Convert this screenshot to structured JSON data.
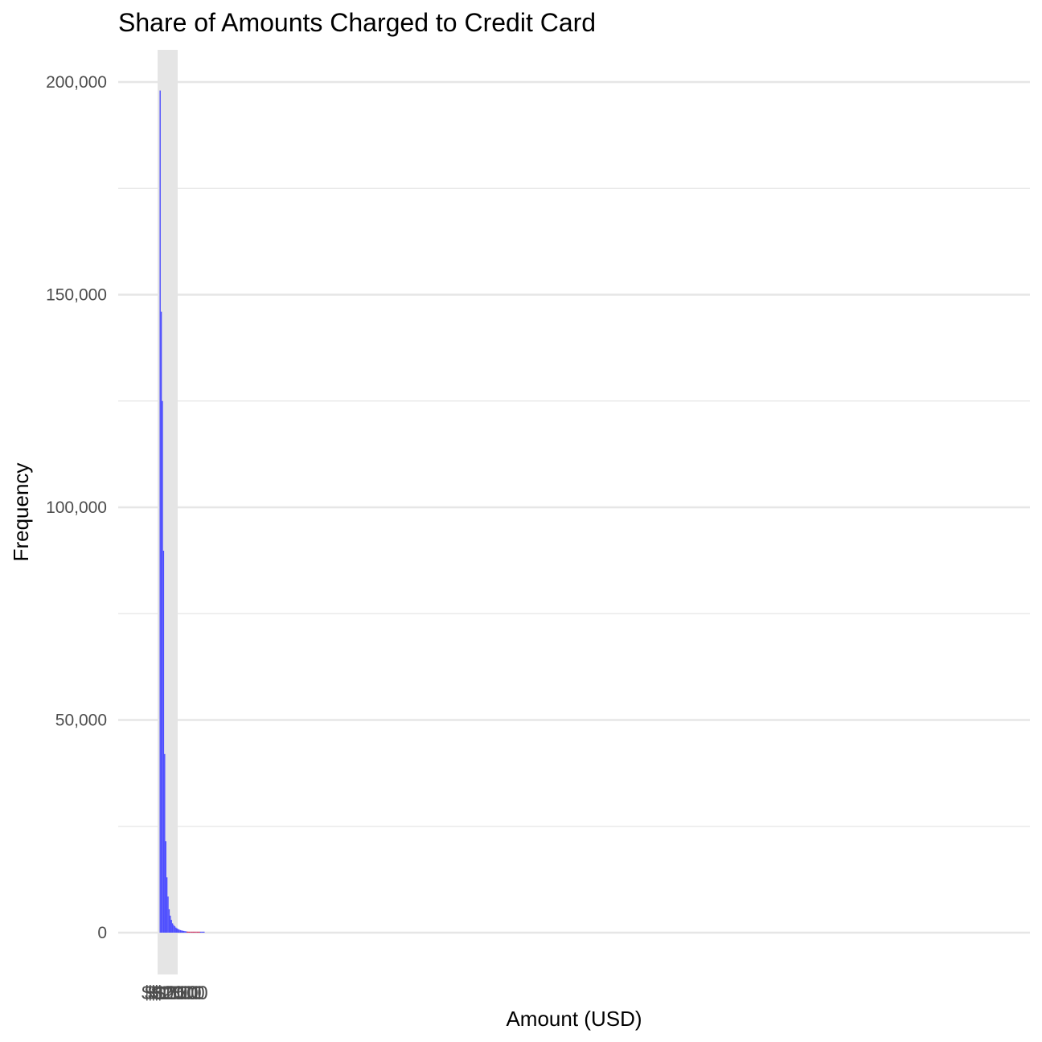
{
  "chart_data": {
    "type": "bar",
    "title": "Share of Amounts Charged to Credit Card",
    "xlabel": "Amount (USD)",
    "ylabel": "Frequency",
    "ylim": [
      0,
      200000
    ],
    "y_ticks": [
      0,
      50000,
      100000,
      150000,
      200000
    ],
    "y_tick_labels": [
      "0",
      "50,000",
      "100,000",
      "150,000",
      "200,000"
    ],
    "y_minor_ticks": [
      25000,
      75000,
      125000,
      175000
    ],
    "grid": true,
    "legend": "none",
    "colors": {
      "bars": "#4d4dff",
      "tail": "#cc3366",
      "highlight_band": "#e5e5e5"
    },
    "bars": [
      {
        "value": 198000,
        "color": "#4d4dff"
      },
      {
        "value": 146000,
        "color": "#4d4dff"
      },
      {
        "value": 125000,
        "color": "#4d4dff"
      },
      {
        "value": 89800,
        "color": "#4d4dff"
      },
      {
        "value": 42000,
        "color": "#4d4dff"
      },
      {
        "value": 21500,
        "color": "#4d4dff"
      },
      {
        "value": 13000,
        "color": "#4d4dff"
      },
      {
        "value": 8500,
        "color": "#4d4dff"
      },
      {
        "value": 5500,
        "color": "#4d4dff"
      },
      {
        "value": 4000,
        "color": "#4d4dff"
      },
      {
        "value": 3000,
        "color": "#4d4dff"
      },
      {
        "value": 2200,
        "color": "#4d4dff"
      },
      {
        "value": 1800,
        "color": "#4d4dff"
      },
      {
        "value": 1500,
        "color": "#4d4dff"
      },
      {
        "value": 1200,
        "color": "#4d4dff"
      },
      {
        "value": 1000,
        "color": "#4d4dff"
      },
      {
        "value": 850,
        "color": "#4d4dff"
      },
      {
        "value": 700,
        "color": "#4d4dff"
      },
      {
        "value": 600,
        "color": "#4d4dff"
      },
      {
        "value": 520,
        "color": "#4d4dff"
      },
      {
        "value": 450,
        "color": "#4d4dff"
      },
      {
        "value": 400,
        "color": "#4d4dff"
      },
      {
        "value": 350,
        "color": "#4d4dff"
      },
      {
        "value": 300,
        "color": "#4d4dff"
      },
      {
        "value": 260,
        "color": "#cc3366"
      },
      {
        "value": 230,
        "color": "#cc3366"
      },
      {
        "value": 200,
        "color": "#cc3366"
      },
      {
        "value": 180,
        "color": "#cc3366"
      },
      {
        "value": 160,
        "color": "#cc3366"
      },
      {
        "value": 140,
        "color": "#cc3366"
      },
      {
        "value": 120,
        "color": "#cc3366"
      },
      {
        "value": 100,
        "color": "#cc3366"
      },
      {
        "value": 90,
        "color": "#cc3366"
      },
      {
        "value": 80,
        "color": "#cc3366"
      },
      {
        "value": 70,
        "color": "#cc3366"
      },
      {
        "value": 60,
        "color": "#cc3366"
      },
      {
        "value": 50,
        "color": "#4d4dff"
      },
      {
        "value": 40,
        "color": "#4d4dff"
      },
      {
        "value": 35,
        "color": "#4d4dff"
      },
      {
        "value": 30,
        "color": "#4d4dff"
      }
    ]
  }
}
